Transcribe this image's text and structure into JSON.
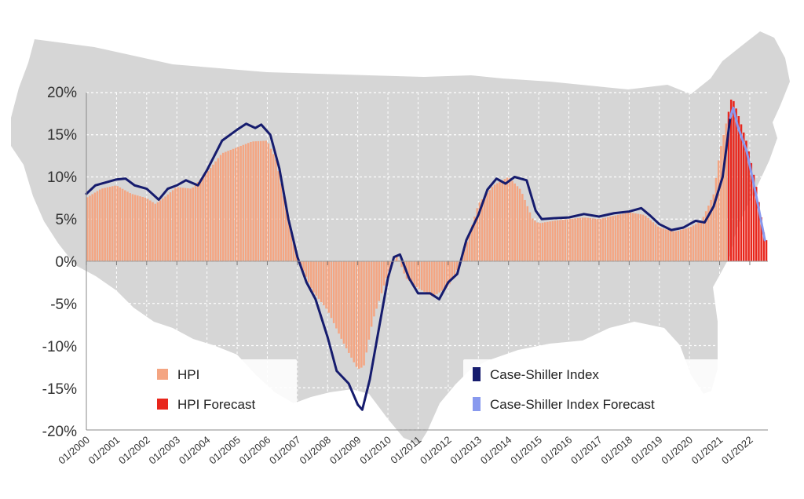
{
  "chart_data": {
    "type": "area",
    "title": "",
    "xlabel": "",
    "ylabel": "",
    "ylim": [
      -20,
      20
    ],
    "y_ticks": [
      "20%",
      "15%",
      "10%",
      "5%",
      "0%",
      "-5%",
      "-10%",
      "-15%",
      "-20%"
    ],
    "x_ticks": [
      "01/2000",
      "01/2001",
      "01/2002",
      "01/2003",
      "01/2004",
      "01/2005",
      "01/2006",
      "01/2007",
      "01/2008",
      "01/2009",
      "01/2010",
      "01/2011",
      "01/2012",
      "01/2013",
      "01/2014",
      "01/2015",
      "01/2016",
      "01/2017",
      "01/2018",
      "01/2019",
      "01/2020",
      "01/2021",
      "01/2022"
    ],
    "x_range": [
      2000.0,
      2022.6
    ],
    "series": [
      {
        "name": "HPI",
        "kind": "bars",
        "color": "#f4a582",
        "forecast_from": 2021.25,
        "points": [
          [
            2000.0,
            7.5
          ],
          [
            2000.5,
            8.6
          ],
          [
            2001.0,
            9.0
          ],
          [
            2001.5,
            8.0
          ],
          [
            2002.0,
            7.5
          ],
          [
            2002.3,
            6.8
          ],
          [
            2002.6,
            7.6
          ],
          [
            2003.0,
            8.8
          ],
          [
            2003.5,
            8.6
          ],
          [
            2004.0,
            10.5
          ],
          [
            2004.5,
            12.8
          ],
          [
            2005.0,
            13.5
          ],
          [
            2005.5,
            14.2
          ],
          [
            2006.0,
            14.3
          ],
          [
            2006.3,
            12.0
          ],
          [
            2006.7,
            5.0
          ],
          [
            2007.0,
            0.5
          ],
          [
            2007.5,
            -3.5
          ],
          [
            2008.0,
            -5.8
          ],
          [
            2008.5,
            -9.5
          ],
          [
            2009.0,
            -12.8
          ],
          [
            2009.2,
            -12.5
          ],
          [
            2009.5,
            -7.0
          ],
          [
            2010.0,
            -1.5
          ],
          [
            2010.3,
            0.8
          ],
          [
            2010.6,
            -2.0
          ],
          [
            2011.0,
            -3.2
          ],
          [
            2011.5,
            -4.2
          ],
          [
            2012.0,
            -3.0
          ],
          [
            2012.3,
            -1.0
          ],
          [
            2012.6,
            2.0
          ],
          [
            2013.0,
            6.8
          ],
          [
            2013.5,
            9.0
          ],
          [
            2014.0,
            10.0
          ],
          [
            2014.4,
            8.5
          ],
          [
            2014.8,
            5.0
          ],
          [
            2015.0,
            4.5
          ],
          [
            2015.5,
            4.8
          ],
          [
            2016.0,
            5.0
          ],
          [
            2016.5,
            5.2
          ],
          [
            2017.0,
            5.0
          ],
          [
            2017.5,
            5.4
          ],
          [
            2018.0,
            5.8
          ],
          [
            2018.5,
            5.5
          ],
          [
            2019.0,
            4.0
          ],
          [
            2019.5,
            3.5
          ],
          [
            2020.0,
            4.0
          ],
          [
            2020.4,
            4.8
          ],
          [
            2020.8,
            8.0
          ],
          [
            2021.0,
            13.0
          ],
          [
            2021.25,
            17.0
          ],
          [
            2021.4,
            19.6
          ],
          [
            2021.6,
            17.5
          ],
          [
            2021.9,
            14.0
          ],
          [
            2022.2,
            9.0
          ],
          [
            2022.5,
            2.5
          ]
        ]
      },
      {
        "name": "HPI Forecast",
        "kind": "bars",
        "color": "#e8261c"
      },
      {
        "name": "Case-Shiller Index",
        "kind": "line",
        "color": "#161c6e",
        "forecast_from": 2021.35,
        "points": [
          [
            2000.0,
            8.0
          ],
          [
            2000.3,
            9.0
          ],
          [
            2000.7,
            9.4
          ],
          [
            2001.0,
            9.7
          ],
          [
            2001.3,
            9.8
          ],
          [
            2001.6,
            9.0
          ],
          [
            2002.0,
            8.6
          ],
          [
            2002.4,
            7.3
          ],
          [
            2002.7,
            8.6
          ],
          [
            2003.0,
            9.0
          ],
          [
            2003.3,
            9.6
          ],
          [
            2003.7,
            9.0
          ],
          [
            2004.0,
            10.8
          ],
          [
            2004.5,
            14.3
          ],
          [
            2005.0,
            15.6
          ],
          [
            2005.3,
            16.3
          ],
          [
            2005.6,
            15.8
          ],
          [
            2005.8,
            16.2
          ],
          [
            2006.1,
            15.0
          ],
          [
            2006.4,
            11.0
          ],
          [
            2006.7,
            5.0
          ],
          [
            2007.0,
            0.5
          ],
          [
            2007.3,
            -2.5
          ],
          [
            2007.6,
            -4.5
          ],
          [
            2008.0,
            -9.0
          ],
          [
            2008.3,
            -13.0
          ],
          [
            2008.7,
            -14.5
          ],
          [
            2009.0,
            -17.0
          ],
          [
            2009.15,
            -17.6
          ],
          [
            2009.4,
            -14.0
          ],
          [
            2009.7,
            -8.0
          ],
          [
            2010.0,
            -2.0
          ],
          [
            2010.2,
            0.5
          ],
          [
            2010.4,
            0.8
          ],
          [
            2010.7,
            -2.0
          ],
          [
            2011.0,
            -3.8
          ],
          [
            2011.4,
            -3.8
          ],
          [
            2011.7,
            -4.5
          ],
          [
            2012.0,
            -2.5
          ],
          [
            2012.3,
            -1.5
          ],
          [
            2012.6,
            2.5
          ],
          [
            2013.0,
            5.5
          ],
          [
            2013.3,
            8.5
          ],
          [
            2013.6,
            9.8
          ],
          [
            2013.9,
            9.2
          ],
          [
            2014.2,
            10.0
          ],
          [
            2014.6,
            9.6
          ],
          [
            2014.9,
            6.0
          ],
          [
            2015.1,
            5.0
          ],
          [
            2015.5,
            5.1
          ],
          [
            2016.0,
            5.2
          ],
          [
            2016.5,
            5.6
          ],
          [
            2017.0,
            5.3
          ],
          [
            2017.5,
            5.7
          ],
          [
            2018.0,
            5.9
          ],
          [
            2018.4,
            6.3
          ],
          [
            2018.7,
            5.4
          ],
          [
            2019.0,
            4.4
          ],
          [
            2019.4,
            3.7
          ],
          [
            2019.8,
            4.0
          ],
          [
            2020.2,
            4.8
          ],
          [
            2020.5,
            4.6
          ],
          [
            2020.8,
            6.5
          ],
          [
            2021.1,
            10.0
          ],
          [
            2021.35,
            17.0
          ],
          [
            2021.45,
            18.2
          ],
          [
            2021.6,
            16.0
          ],
          [
            2021.9,
            13.0
          ],
          [
            2022.2,
            8.0
          ],
          [
            2022.5,
            2.5
          ]
        ]
      },
      {
        "name": "Case-Shiller Index Forecast",
        "kind": "line",
        "color": "#8899ee"
      }
    ],
    "legend": [
      {
        "label": "HPI",
        "color": "#f4a582"
      },
      {
        "label": "HPI Forecast",
        "color": "#e8261c"
      },
      {
        "label": "Case-Shiller Index",
        "color": "#161c6e"
      },
      {
        "label": "Case-Shiller Index Forecast",
        "color": "#8899ee"
      }
    ]
  }
}
